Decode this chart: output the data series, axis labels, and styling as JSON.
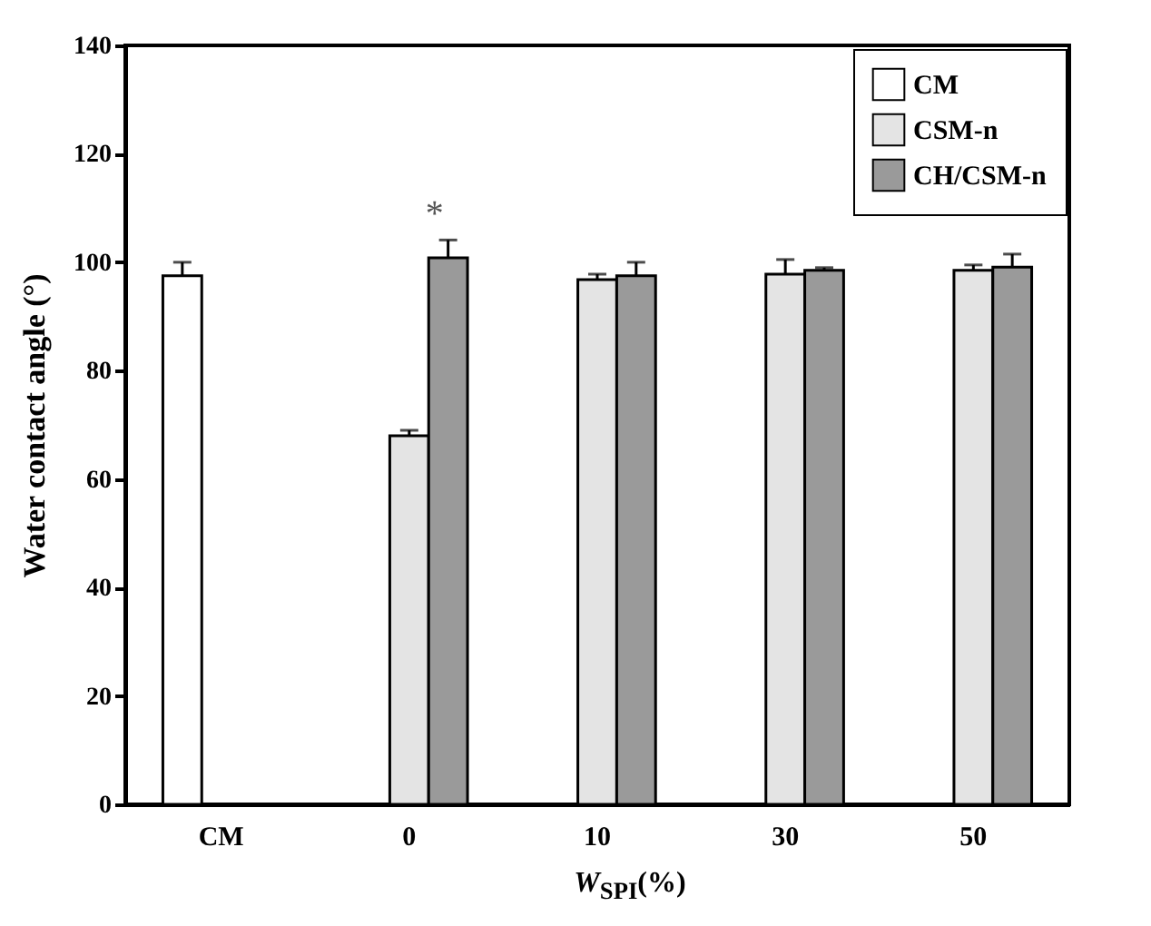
{
  "chart_data": {
    "type": "bar",
    "xlabel": "W$_{SPI}$(%)",
    "ylabel": "Water contact angle (°)",
    "categories": [
      "CM",
      "0",
      "10",
      "30",
      "50"
    ],
    "series": [
      {
        "name": "CM",
        "color": "#ffffff",
        "values": [
          97.5,
          null,
          null,
          null,
          null
        ],
        "errors": [
          2.5,
          null,
          null,
          null,
          null
        ]
      },
      {
        "name": "CSM-n",
        "color": "#e4e4e4",
        "values": [
          null,
          68.0,
          96.8,
          97.8,
          98.5
        ],
        "errors": [
          null,
          1.0,
          1.0,
          2.7,
          1.0
        ]
      },
      {
        "name": "CH/CSM-n",
        "color": "#9a9a9a",
        "values": [
          null,
          100.8,
          97.5,
          98.5,
          99.1
        ],
        "errors": [
          null,
          3.3,
          2.5,
          0.5,
          2.4
        ]
      }
    ],
    "annotations": [
      "*"
    ],
    "ylim": [
      0,
      140
    ],
    "yticks": [
      0,
      20,
      40,
      60,
      80,
      100,
      120,
      140
    ],
    "grid": false,
    "legend": "top right"
  }
}
